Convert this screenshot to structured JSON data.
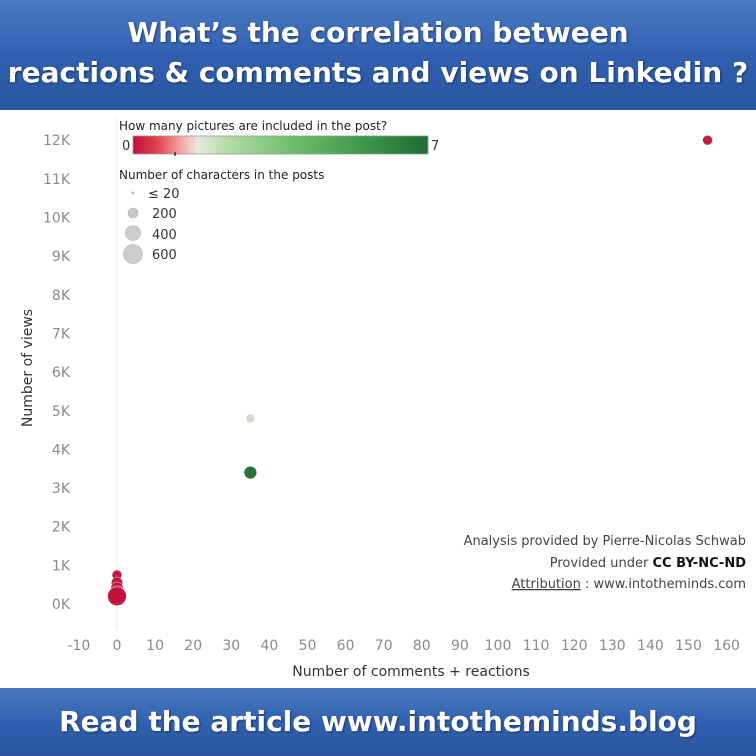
{
  "header": {
    "line1": "What’s the correlation between",
    "line2": "reactions & comments and views on Linkedin ?"
  },
  "footer": {
    "text": "Read the article www.intotheminds.blog"
  },
  "legend": {
    "color_title": "How many pictures are included in the post?",
    "color_min": "0",
    "color_max": "7",
    "size_title": "Number of characters in the posts",
    "size_labels": [
      "≤ 20",
      "200",
      "400",
      "600"
    ]
  },
  "attribution": {
    "line1": "Analysis provided by Pierre-Nicolas Schwab",
    "line2_prefix": "Provided under ",
    "line2_license": "CC BY-NC-ND",
    "line3_label": "Attribution",
    "line3_rest": " : www.intotheminds.com"
  },
  "chart_data": {
    "type": "scatter",
    "title": "",
    "xlabel": "Number of comments + reactions",
    "ylabel": "Number of views",
    "xlim": [
      -10,
      160
    ],
    "ylim": [
      0,
      12000
    ],
    "x_ticks": [
      -10,
      0,
      10,
      20,
      30,
      40,
      50,
      60,
      70,
      80,
      90,
      100,
      110,
      120,
      130,
      140,
      150,
      160
    ],
    "y_ticks": [
      {
        "value": 0,
        "label": "0K"
      },
      {
        "value": 1000,
        "label": "1K"
      },
      {
        "value": 2000,
        "label": "2K"
      },
      {
        "value": 3000,
        "label": "3K"
      },
      {
        "value": 4000,
        "label": "4K"
      },
      {
        "value": 5000,
        "label": "5K"
      },
      {
        "value": 6000,
        "label": "6K"
      },
      {
        "value": 7000,
        "label": "7K"
      },
      {
        "value": 8000,
        "label": "8K"
      },
      {
        "value": 9000,
        "label": "9K"
      },
      {
        "value": 10000,
        "label": "10K"
      },
      {
        "value": 11000,
        "label": "11K"
      },
      {
        "value": 12000,
        "label": "12K"
      }
    ],
    "grid": false,
    "color_encoding": "number of pictures (0 = red, 7 = dark green)",
    "size_encoding": "number of characters in the post",
    "points": [
      {
        "x": 155,
        "y": 12000,
        "pictures": 0,
        "characters": 150
      },
      {
        "x": 35,
        "y": 4800,
        "pictures": 2,
        "characters": 120
      },
      {
        "x": 35,
        "y": 3400,
        "pictures": 7,
        "characters": 250
      },
      {
        "x": 0,
        "y": 750,
        "pictures": 0,
        "characters": 150
      },
      {
        "x": 0,
        "y": 550,
        "pictures": 0,
        "characters": 200
      },
      {
        "x": 0,
        "y": 400,
        "pictures": 0,
        "characters": 250
      },
      {
        "x": 0,
        "y": 250,
        "pictures": 0,
        "characters": 450
      },
      {
        "x": 0,
        "y": 200,
        "pictures": 0,
        "characters": 550
      }
    ],
    "colors": {
      "low": "#c0103a",
      "mid": "#d8dcd0",
      "high": "#1f6b35"
    }
  }
}
